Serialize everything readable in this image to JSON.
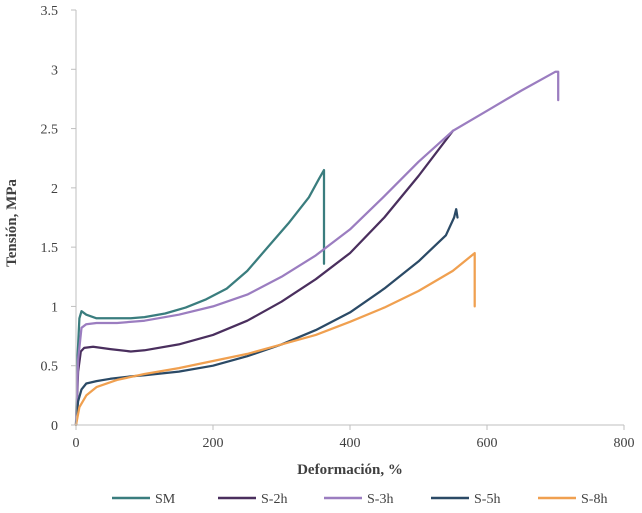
{
  "chart_data": {
    "type": "line",
    "xlabel": "Deformación, %",
    "ylabel": "Tensión, MPa",
    "xlim": [
      0,
      800
    ],
    "ylim": [
      0,
      3.5
    ],
    "xticks": [
      "0",
      "200",
      "400",
      "600",
      "800"
    ],
    "yticks": [
      "0",
      "0.5",
      "1",
      "1.5",
      "2",
      "2.5",
      "3",
      "3.5"
    ],
    "grid": false,
    "legend_position": "bottom",
    "series": [
      {
        "name": "SM",
        "color": "#3a7d7e",
        "points": [
          [
            0,
            0
          ],
          [
            2,
            0.55
          ],
          [
            5,
            0.9
          ],
          [
            8,
            0.96
          ],
          [
            15,
            0.93
          ],
          [
            30,
            0.9
          ],
          [
            50,
            0.9
          ],
          [
            80,
            0.9
          ],
          [
            100,
            0.91
          ],
          [
            130,
            0.94
          ],
          [
            160,
            0.99
          ],
          [
            190,
            1.06
          ],
          [
            220,
            1.15
          ],
          [
            250,
            1.3
          ],
          [
            280,
            1.5
          ],
          [
            310,
            1.7
          ],
          [
            340,
            1.92
          ],
          [
            355,
            2.08
          ],
          [
            362,
            2.15
          ],
          [
            362,
            1.36
          ]
        ]
      },
      {
        "name": "S-2h",
        "color": "#4a2f5e",
        "points": [
          [
            0,
            0
          ],
          [
            3,
            0.45
          ],
          [
            7,
            0.62
          ],
          [
            12,
            0.65
          ],
          [
            25,
            0.66
          ],
          [
            50,
            0.64
          ],
          [
            80,
            0.62
          ],
          [
            100,
            0.63
          ],
          [
            150,
            0.68
          ],
          [
            200,
            0.76
          ],
          [
            250,
            0.88
          ],
          [
            300,
            1.04
          ],
          [
            350,
            1.23
          ],
          [
            400,
            1.45
          ],
          [
            450,
            1.75
          ],
          [
            500,
            2.1
          ],
          [
            550,
            2.48
          ]
        ]
      },
      {
        "name": "S-3h",
        "color": "#9b7dc0",
        "points": [
          [
            0,
            0
          ],
          [
            3,
            0.55
          ],
          [
            8,
            0.82
          ],
          [
            15,
            0.85
          ],
          [
            30,
            0.86
          ],
          [
            60,
            0.86
          ],
          [
            100,
            0.88
          ],
          [
            150,
            0.93
          ],
          [
            200,
            1.0
          ],
          [
            250,
            1.1
          ],
          [
            300,
            1.25
          ],
          [
            350,
            1.43
          ],
          [
            400,
            1.65
          ],
          [
            450,
            1.93
          ],
          [
            500,
            2.22
          ],
          [
            550,
            2.48
          ],
          [
            600,
            2.65
          ],
          [
            650,
            2.82
          ],
          [
            700,
            2.98
          ],
          [
            704,
            2.98
          ],
          [
            704,
            2.74
          ]
        ]
      },
      {
        "name": "S-5h",
        "color": "#2b4a66",
        "points": [
          [
            0,
            0
          ],
          [
            3,
            0.2
          ],
          [
            8,
            0.3
          ],
          [
            15,
            0.35
          ],
          [
            30,
            0.37
          ],
          [
            50,
            0.39
          ],
          [
            80,
            0.41
          ],
          [
            100,
            0.42
          ],
          [
            150,
            0.45
          ],
          [
            200,
            0.5
          ],
          [
            250,
            0.58
          ],
          [
            300,
            0.68
          ],
          [
            350,
            0.8
          ],
          [
            400,
            0.95
          ],
          [
            450,
            1.15
          ],
          [
            500,
            1.38
          ],
          [
            540,
            1.6
          ],
          [
            552,
            1.75
          ],
          [
            555,
            1.82
          ],
          [
            557,
            1.75
          ]
        ]
      },
      {
        "name": "S-8h",
        "color": "#f0a050",
        "points": [
          [
            0,
            0
          ],
          [
            5,
            0.15
          ],
          [
            15,
            0.25
          ],
          [
            30,
            0.32
          ],
          [
            60,
            0.38
          ],
          [
            100,
            0.43
          ],
          [
            150,
            0.48
          ],
          [
            200,
            0.54
          ],
          [
            250,
            0.6
          ],
          [
            300,
            0.68
          ],
          [
            350,
            0.76
          ],
          [
            400,
            0.87
          ],
          [
            450,
            0.99
          ],
          [
            500,
            1.13
          ],
          [
            550,
            1.3
          ],
          [
            578,
            1.43
          ],
          [
            582,
            1.45
          ],
          [
            582,
            1.0
          ]
        ]
      }
    ]
  }
}
